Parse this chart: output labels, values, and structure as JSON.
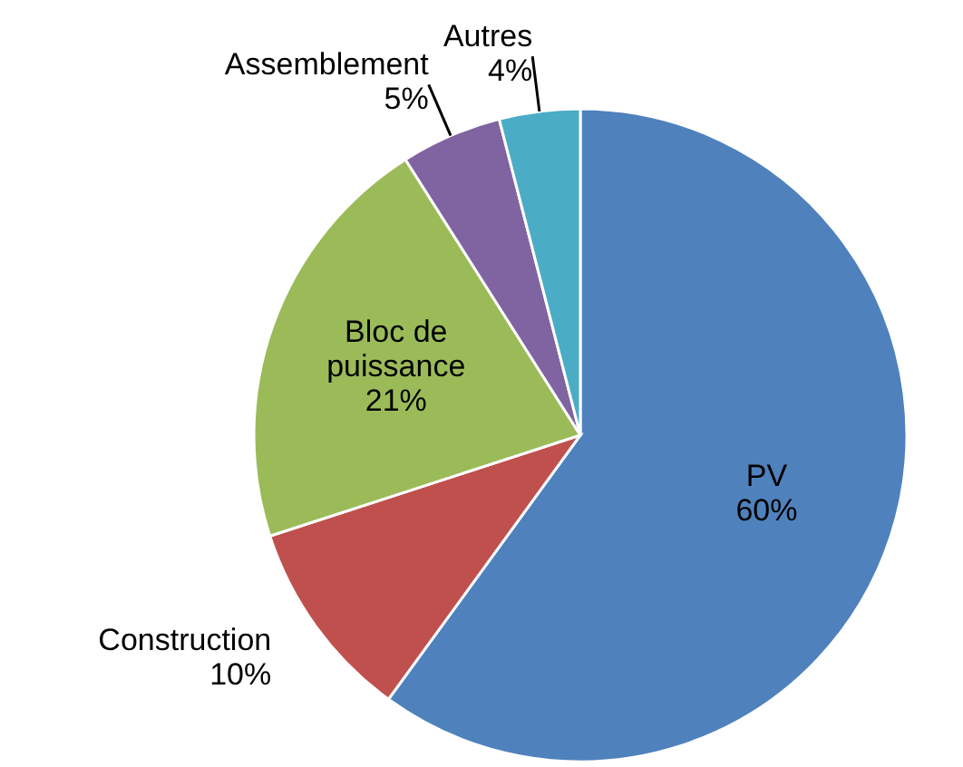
{
  "chart_data": {
    "type": "pie",
    "categories": [
      "PV",
      "Construction",
      "Bloc de puissance",
      "Assemblement",
      "Autres"
    ],
    "values": [
      60,
      10,
      21,
      5,
      4
    ],
    "colors": [
      "#4f81bd",
      "#c0504d",
      "#9bbb59",
      "#8064a2",
      "#4bacc6"
    ],
    "value_labels": [
      "60%",
      "10%",
      "21%",
      "5%",
      "4%"
    ]
  }
}
